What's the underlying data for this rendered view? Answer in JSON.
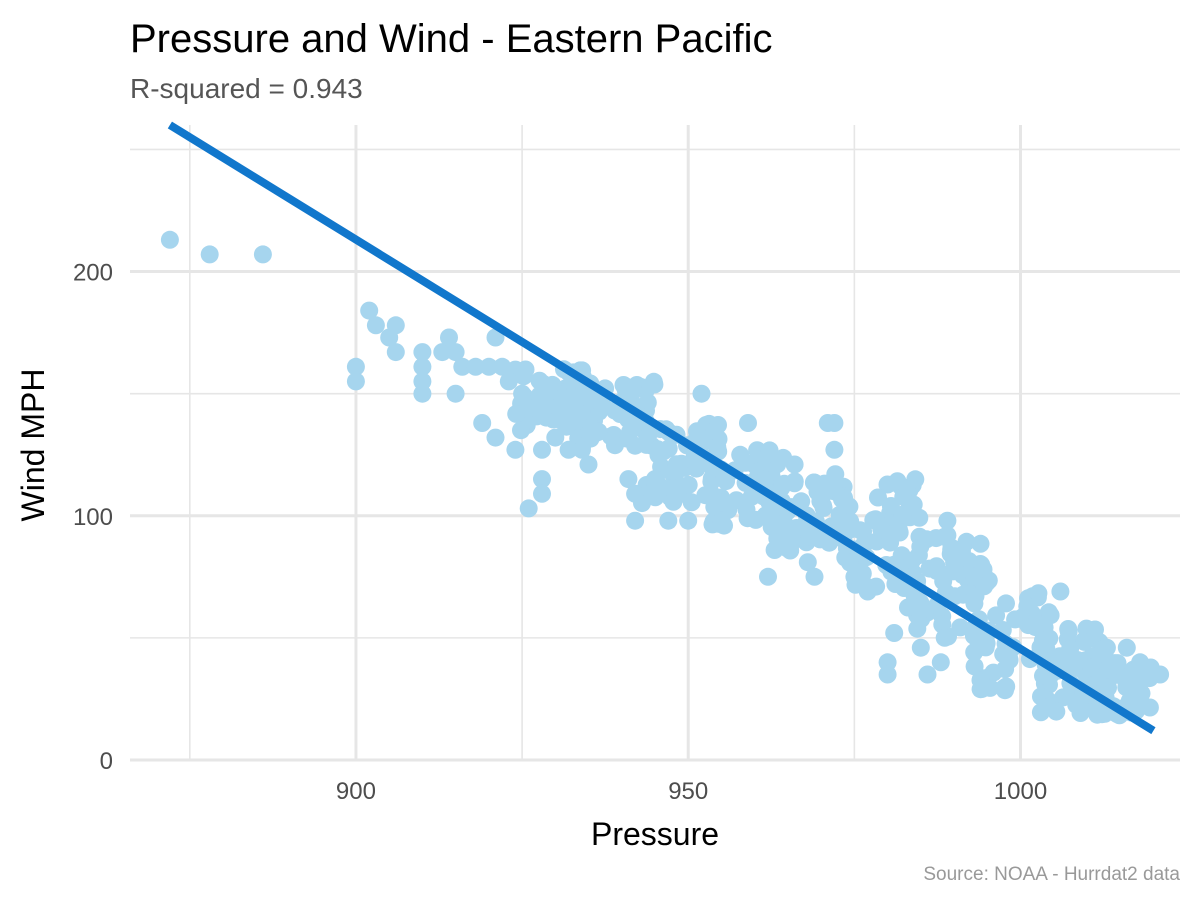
{
  "chart_data": {
    "type": "scatter",
    "title": "Pressure and Wind - Eastern Pacific",
    "subtitle": "R-squared =  0.943",
    "caption": "Source: NOAA - Hurrdat2 data",
    "xlabel": "Pressure",
    "ylabel": "Wind MPH",
    "xlim": [
      866,
      1024
    ],
    "ylim": [
      0,
      260
    ],
    "x_ticks": [
      900,
      950,
      1000
    ],
    "y_ticks": [
      0,
      100,
      200
    ],
    "grid": true,
    "colors": {
      "points": "#a6d5ee",
      "fit_line": "#1177cc",
      "grid": "#e6e6e6"
    },
    "fit_line": {
      "x": [
        872,
        1020
      ],
      "y": [
        260,
        12
      ]
    },
    "outlier_points": [
      {
        "x": 872,
        "y": 213
      },
      {
        "x": 878,
        "y": 207
      },
      {
        "x": 886,
        "y": 207
      },
      {
        "x": 900,
        "y": 161
      },
      {
        "x": 900,
        "y": 155
      },
      {
        "x": 902,
        "y": 184
      },
      {
        "x": 903,
        "y": 178
      },
      {
        "x": 905,
        "y": 173
      },
      {
        "x": 906,
        "y": 178
      },
      {
        "x": 906,
        "y": 167
      },
      {
        "x": 910,
        "y": 167
      },
      {
        "x": 910,
        "y": 161
      },
      {
        "x": 910,
        "y": 155
      },
      {
        "x": 910,
        "y": 150
      },
      {
        "x": 913,
        "y": 167
      },
      {
        "x": 914,
        "y": 173
      },
      {
        "x": 915,
        "y": 167
      },
      {
        "x": 915,
        "y": 150
      },
      {
        "x": 916,
        "y": 161
      },
      {
        "x": 918,
        "y": 161
      },
      {
        "x": 919,
        "y": 138
      },
      {
        "x": 920,
        "y": 161
      },
      {
        "x": 921,
        "y": 173
      },
      {
        "x": 921,
        "y": 132
      },
      {
        "x": 922,
        "y": 161
      },
      {
        "x": 923,
        "y": 155
      },
      {
        "x": 924,
        "y": 127
      },
      {
        "x": 925,
        "y": 150
      },
      {
        "x": 926,
        "y": 103
      },
      {
        "x": 926,
        "y": 144
      },
      {
        "x": 928,
        "y": 127
      },
      {
        "x": 928,
        "y": 115
      },
      {
        "x": 928,
        "y": 109
      },
      {
        "x": 930,
        "y": 132
      },
      {
        "x": 932,
        "y": 127
      },
      {
        "x": 934,
        "y": 127
      },
      {
        "x": 935,
        "y": 121
      },
      {
        "x": 941,
        "y": 115
      },
      {
        "x": 942,
        "y": 98
      },
      {
        "x": 942,
        "y": 109
      },
      {
        "x": 945,
        "y": 115
      },
      {
        "x": 947,
        "y": 98
      },
      {
        "x": 950,
        "y": 98
      },
      {
        "x": 952,
        "y": 150
      },
      {
        "x": 955,
        "y": 98
      },
      {
        "x": 959,
        "y": 138
      },
      {
        "x": 962,
        "y": 75
      },
      {
        "x": 963,
        "y": 86
      },
      {
        "x": 966,
        "y": 121
      },
      {
        "x": 968,
        "y": 81
      },
      {
        "x": 969,
        "y": 75
      },
      {
        "x": 971,
        "y": 138
      },
      {
        "x": 972,
        "y": 138
      },
      {
        "x": 972,
        "y": 127
      },
      {
        "x": 975,
        "y": 75
      },
      {
        "x": 977,
        "y": 69
      },
      {
        "x": 980,
        "y": 40
      },
      {
        "x": 980,
        "y": 35
      },
      {
        "x": 981,
        "y": 52
      },
      {
        "x": 985,
        "y": 46
      },
      {
        "x": 986,
        "y": 35
      },
      {
        "x": 988,
        "y": 40
      },
      {
        "x": 989,
        "y": 98
      },
      {
        "x": 989,
        "y": 92
      },
      {
        "x": 990,
        "y": 81
      },
      {
        "x": 991,
        "y": 86
      },
      {
        "x": 993,
        "y": 75
      },
      {
        "x": 994,
        "y": 29
      },
      {
        "x": 1006,
        "y": 69
      },
      {
        "x": 1013,
        "y": 46
      },
      {
        "x": 1016,
        "y": 46
      },
      {
        "x": 1018,
        "y": 40
      },
      {
        "x": 1020,
        "y": 35
      },
      {
        "x": 1021,
        "y": 35
      }
    ],
    "main_cluster_bands": [
      {
        "x_min": 924,
        "x_max": 935,
        "y_min": 135,
        "y_max": 162
      },
      {
        "x_min": 933,
        "x_max": 945,
        "y_min": 128,
        "y_max": 155
      },
      {
        "x_min": 943,
        "x_max": 955,
        "y_min": 105,
        "y_max": 138
      },
      {
        "x_min": 953,
        "x_max": 965,
        "y_min": 95,
        "y_max": 128
      },
      {
        "x_min": 963,
        "x_max": 975,
        "y_min": 85,
        "y_max": 118
      },
      {
        "x_min": 973,
        "x_max": 985,
        "y_min": 70,
        "y_max": 115
      },
      {
        "x_min": 983,
        "x_max": 995,
        "y_min": 50,
        "y_max": 92
      },
      {
        "x_min": 993,
        "x_max": 1005,
        "y_min": 28,
        "y_max": 75
      },
      {
        "x_min": 1003,
        "x_max": 1013,
        "y_min": 18,
        "y_max": 55
      },
      {
        "x_min": 1010,
        "x_max": 1020,
        "y_min": 18,
        "y_max": 40
      }
    ]
  }
}
